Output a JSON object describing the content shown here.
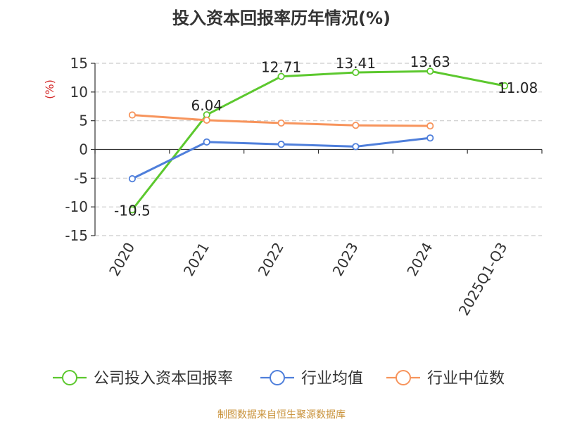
{
  "chart_data": {
    "type": "line",
    "title": "投入资本回报率历年情况(%)",
    "ylabel": "(%)",
    "xlabel": "",
    "categories": [
      "2020",
      "2021",
      "2022",
      "2023",
      "2024",
      "2025Q1-Q3"
    ],
    "ylim": [
      -15,
      15
    ],
    "yticks": [
      15,
      10,
      5,
      0,
      -5,
      -10,
      -15
    ],
    "grid": true,
    "legend_position": "bottom",
    "series": [
      {
        "name": "公司投入资本回报率",
        "color": "#5cc82e",
        "values": [
          -10.5,
          6.04,
          12.71,
          13.41,
          13.63,
          11.08
        ],
        "labels": [
          "-10.5",
          "6.04",
          "12.71",
          "13.41",
          "13.63",
          "11.08"
        ]
      },
      {
        "name": "行业均值",
        "color": "#4f7fdb",
        "values": [
          -5.1,
          1.3,
          0.9,
          0.5,
          2.0,
          null
        ]
      },
      {
        "name": "行业中位数",
        "color": "#f7945c",
        "values": [
          6.0,
          5.1,
          4.6,
          4.2,
          4.1,
          null
        ]
      }
    ]
  },
  "source_text": "制图数据来自恒生聚源数据库",
  "colors": {
    "axis": "#333333",
    "grid": "#cccccc",
    "ylabel": "#d42a2a",
    "source": "#c9923a"
  }
}
